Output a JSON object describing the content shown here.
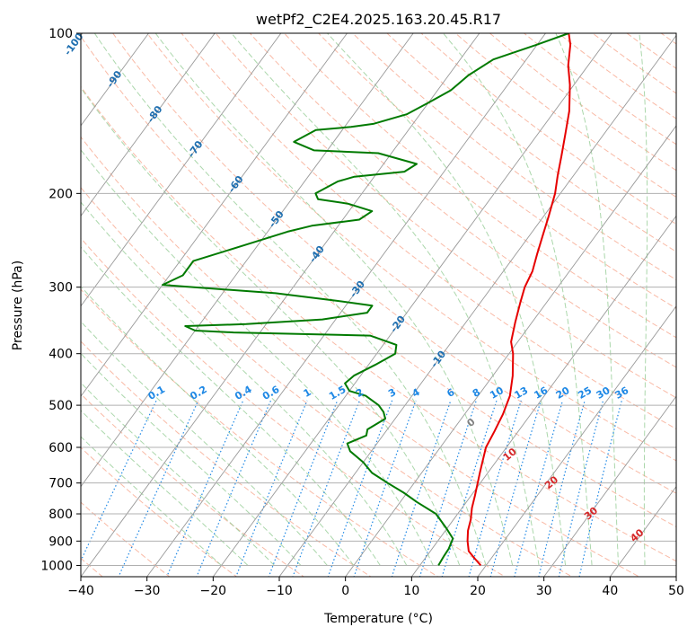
{
  "chart_data": {
    "type": "line",
    "title": "wetPf2_C2E4.2025.163.20.45.R17",
    "xlabel": "Temperature (°C)",
    "ylabel": "Pressure (hPa)",
    "xlim": [
      -40,
      50
    ],
    "ylim": [
      1050,
      100
    ],
    "y_scale": "log",
    "skew_deg_per_decade": 59,
    "grid": true,
    "x_ticks": [
      -40,
      -30,
      -20,
      -10,
      0,
      10,
      20,
      30,
      40,
      50
    ],
    "y_ticks": [
      100,
      200,
      300,
      400,
      500,
      600,
      700,
      800,
      900,
      1000
    ],
    "isotherm_labels": [
      -100,
      -90,
      -80,
      -70,
      -60,
      -50,
      -40,
      -30,
      -20,
      -10
    ],
    "mixing_ratio_labels": [
      "0.1",
      "0.2",
      "0.4",
      "0.6",
      "1",
      "1.5",
      "2",
      "3",
      "4",
      "6",
      "8",
      "10",
      "13",
      "16",
      "20",
      "25",
      "30",
      "36"
    ],
    "moist_adiabat_labels": [
      "0",
      "10",
      "20",
      "30",
      "40"
    ],
    "colors": {
      "temperature": "#e60000",
      "dewpoint": "#007a00",
      "isotherm": "#999999",
      "isotherm_label": "#1f6fb0",
      "dry_adiabat": "#f7a388",
      "moist_adiabat": "#8fc98f",
      "mixing_ratio": "#1e88e5",
      "moist_label_zero": "#808080",
      "moist_label": "#d62728"
    },
    "series": [
      {
        "color": "#e60000",
        "points": [
          [
            19.2,
            1000
          ],
          [
            17.5,
            970
          ],
          [
            15.8,
            940
          ],
          [
            14.5,
            900
          ],
          [
            13.4,
            860
          ],
          [
            12.6,
            820
          ],
          [
            11.5,
            780
          ],
          [
            10.6,
            740
          ],
          [
            9.6,
            700
          ],
          [
            8.8,
            670
          ],
          [
            8.0,
            640
          ],
          [
            6.9,
            600
          ],
          [
            6.4,
            560
          ],
          [
            5.8,
            520
          ],
          [
            4.8,
            480
          ],
          [
            3.0,
            440
          ],
          [
            0.6,
            400
          ],
          [
            -1.0,
            380
          ],
          [
            -2.5,
            350
          ],
          [
            -4.0,
            320
          ],
          [
            -5.0,
            300
          ],
          [
            -5.6,
            280
          ],
          [
            -6.8,
            260
          ],
          [
            -8.0,
            240
          ],
          [
            -9.3,
            220
          ],
          [
            -10.8,
            200
          ],
          [
            -12.4,
            185
          ],
          [
            -14.0,
            170
          ],
          [
            -15.8,
            155
          ],
          [
            -17.8,
            140
          ],
          [
            -20.6,
            125
          ],
          [
            -23.0,
            115
          ],
          [
            -25.0,
            105
          ],
          [
            -26.5,
            100
          ]
        ]
      },
      {
        "color": "#007a00",
        "points": [
          [
            12.8,
            1000
          ],
          [
            12.6,
            960
          ],
          [
            12.5,
            930
          ],
          [
            12.0,
            890
          ],
          [
            9.8,
            850
          ],
          [
            6.7,
            800
          ],
          [
            2.5,
            760
          ],
          [
            -0.5,
            730
          ],
          [
            -4.0,
            700
          ],
          [
            -7.5,
            670
          ],
          [
            -10.0,
            640
          ],
          [
            -13.2,
            610
          ],
          [
            -14.5,
            590
          ],
          [
            -12.5,
            570
          ],
          [
            -13.0,
            555
          ],
          [
            -11.5,
            530
          ],
          [
            -12.5,
            515
          ],
          [
            -14.0,
            500
          ],
          [
            -17.0,
            480
          ],
          [
            -20.0,
            470
          ],
          [
            -21.5,
            455
          ],
          [
            -21.0,
            440
          ],
          [
            -19.0,
            420
          ],
          [
            -17.2,
            400
          ],
          [
            -18.0,
            385
          ],
          [
            -23.0,
            370
          ],
          [
            -44.0,
            365
          ],
          [
            -50.0,
            362
          ],
          [
            -52.0,
            355
          ],
          [
            -43.0,
            352
          ],
          [
            -32.0,
            345
          ],
          [
            -26.0,
            335
          ],
          [
            -26.0,
            325
          ],
          [
            -32.0,
            318
          ],
          [
            -42.0,
            308
          ],
          [
            -55.0,
            300
          ],
          [
            -60.0,
            297
          ],
          [
            -58.0,
            285
          ],
          [
            -58.0,
            268
          ],
          [
            -52.0,
            250
          ],
          [
            -47.0,
            236
          ],
          [
            -44.0,
            230
          ],
          [
            -37.5,
            224
          ],
          [
            -36.5,
            216
          ],
          [
            -41.0,
            209
          ],
          [
            -46.0,
            205
          ],
          [
            -47.0,
            200
          ],
          [
            -45.0,
            190
          ],
          [
            -43.0,
            186
          ],
          [
            -36.0,
            182
          ],
          [
            -35.0,
            176
          ],
          [
            -42.0,
            168
          ],
          [
            -52.0,
            166
          ],
          [
            -56.0,
            160
          ],
          [
            -54.0,
            152
          ],
          [
            -49.0,
            150
          ],
          [
            -46.0,
            148
          ],
          [
            -42.0,
            142
          ],
          [
            -40.0,
            135
          ],
          [
            -38.0,
            128
          ],
          [
            -37.0,
            120
          ],
          [
            -35.0,
            112
          ],
          [
            -30.0,
            105
          ],
          [
            -26.5,
            100
          ]
        ]
      }
    ]
  }
}
